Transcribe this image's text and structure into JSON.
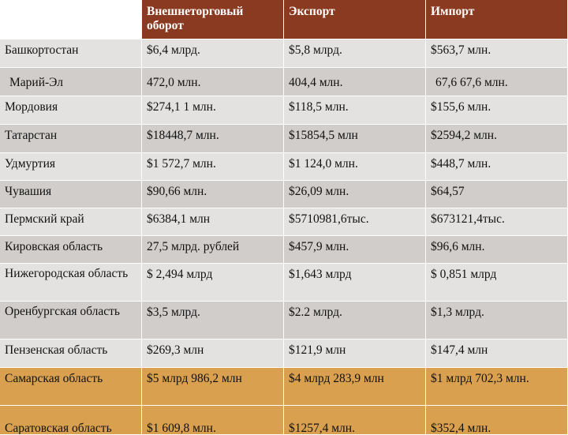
{
  "table": {
    "headers": [
      "",
      "Внешнеторговый оборот",
      "Экспорт",
      "Импорт"
    ],
    "rows": [
      {
        "region": "Башкортостан",
        "turnover": "$6,4 млрд.",
        "export": "$5,8 млрд.",
        "import": "$563,7 млн."
      },
      {
        "region": "Марий-Эл",
        "turnover": "472,0 млн.",
        "export": "404,4 млн.",
        "import": "67,6 67,6 млн."
      },
      {
        "region": "Мордовия",
        "turnover": "$274,1 1 млн.",
        "export": "$118,5 млн.",
        "import": "$155,6 млн."
      },
      {
        "region": "Татарстан",
        "turnover": "$18448,7  млн.",
        "export": "$15854,5 млн",
        "import": "$2594,2 млн."
      },
      {
        "region": "Удмуртия",
        "turnover": "$1 572,7 млн.",
        "export": "$1 124,0 млн.",
        "import": "$448,7 млн."
      },
      {
        "region": "Чувашия",
        "turnover": "$90,66 млн.",
        "export": "$26,09 млн.",
        "import": "$64,57"
      },
      {
        "region": "Пермский край",
        "turnover": "$6384,1 млн",
        "export": "$5710981,6тыс.",
        "import": "$673121,4тыс."
      },
      {
        "region": "Кировская область",
        "turnover": "27,5 млрд. рублей",
        "export": "$457,9 млн.",
        "import": "$96,6 млн."
      },
      {
        "region": "Нижегородская область",
        "turnover": "$ 2,494 млрд",
        "export": "$1,643 млрд",
        "import": "$ 0,851 млрд"
      },
      {
        "region": "Оренбургская область",
        "turnover": "$3,5 млрд.",
        "export": "$2.2 млрд.",
        "import": "$1,3 млрд."
      },
      {
        "region": "Пензенская область",
        "turnover": "$269,3 млн",
        "export": "$121,9 млн",
        "import": "$147,4 млн"
      },
      {
        "region": "Самарская область",
        "turnover": "$5 млрд 986,2 млн",
        "export": "$4 млрд 283,9 млн",
        "import": "$1 млрд 702,3 млн."
      },
      {
        "region": "Саратовская область",
        "turnover": "$1 609,8 млн.",
        "export": "$1257,4 млн.",
        "import": "$352,4 млн."
      }
    ]
  },
  "colors": {
    "header_bg": "#8b3a22",
    "row_light": "#e4e2e0",
    "row_dark": "#d0cdca",
    "row_highlight": "#d9a04f"
  }
}
